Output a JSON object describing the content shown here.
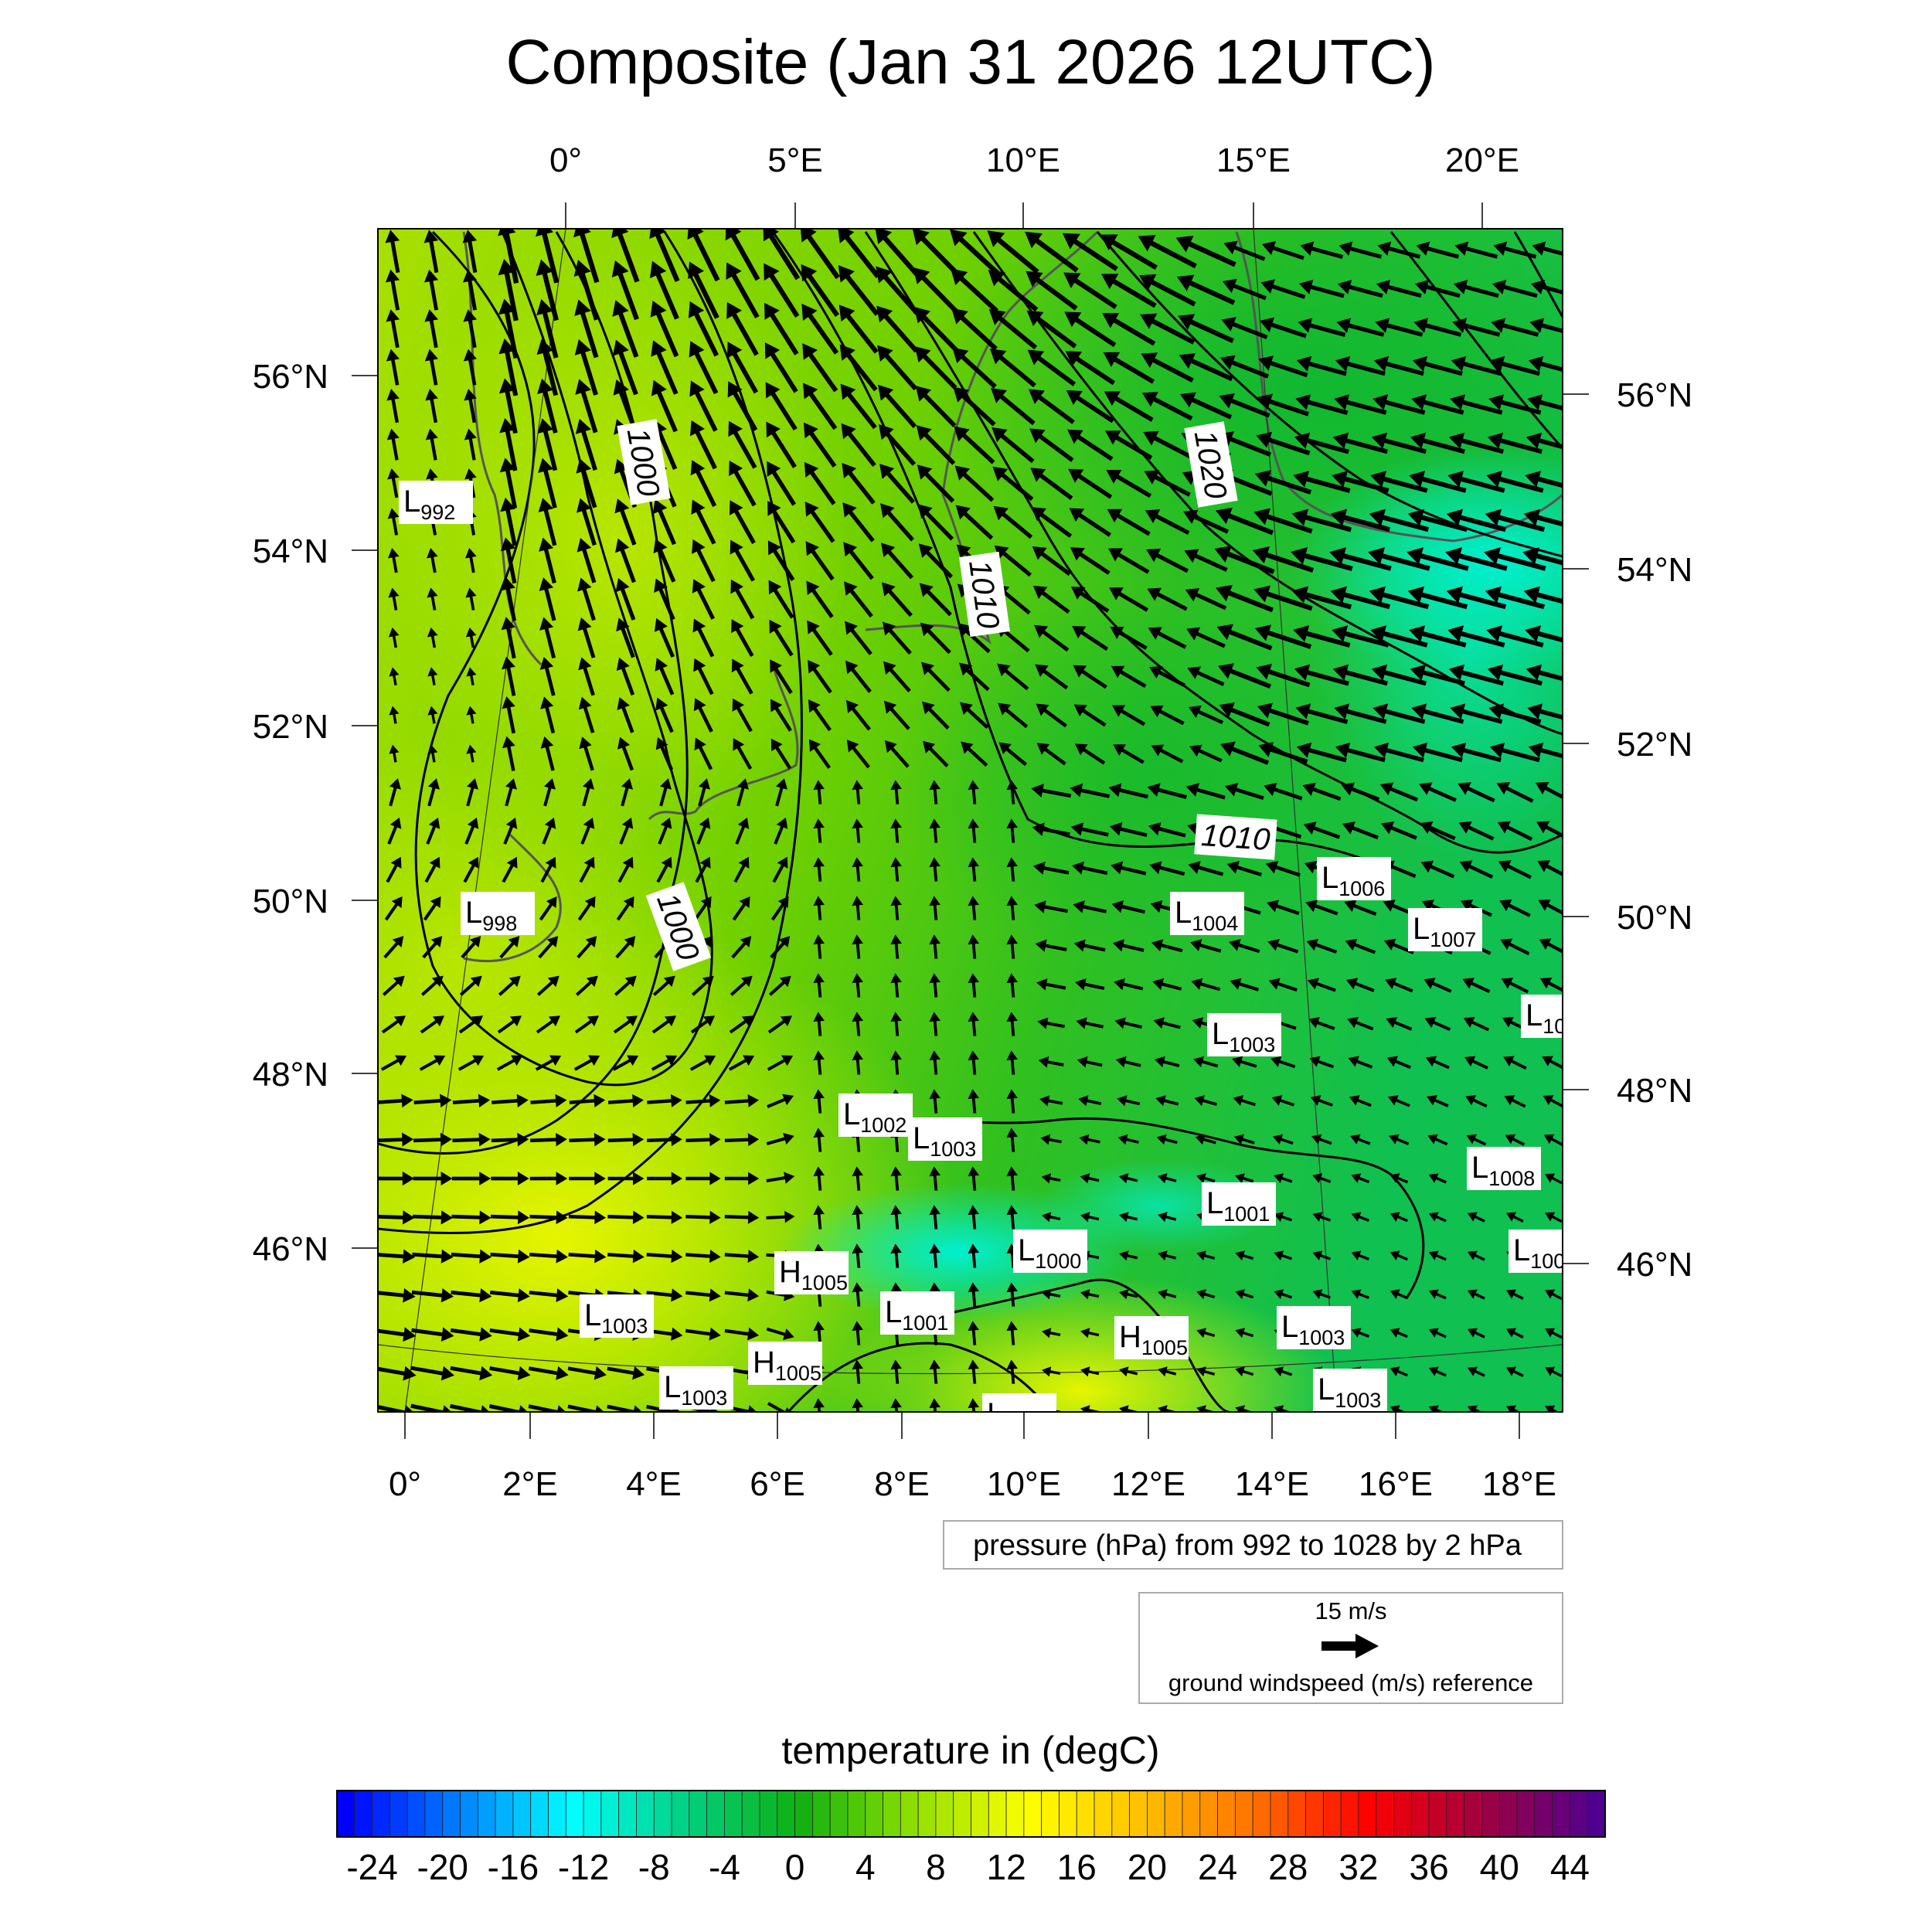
{
  "title": "Composite (Jan 31 2026 12UTC)",
  "chart_data": {
    "type": "heatmap",
    "title": "Composite (Jan 31 2026 12UTC)",
    "top_lon_ticks": [
      "0°",
      "5°E",
      "10°E",
      "15°E",
      "20°E"
    ],
    "bottom_lon_ticks": [
      "0°",
      "2°E",
      "4°E",
      "6°E",
      "8°E",
      "10°E",
      "12°E",
      "14°E",
      "16°E",
      "18°E"
    ],
    "left_lat_ticks": [
      "56°N",
      "54°N",
      "52°N",
      "50°N",
      "48°N",
      "46°N"
    ],
    "right_lat_ticks": [
      "56°N",
      "54°N",
      "52°N",
      "50°N",
      "48°N",
      "46°N"
    ],
    "contour_labels": [
      "1000",
      "1000",
      "1020",
      "1010",
      "1010"
    ],
    "pressure_centers": [
      {
        "type": "L",
        "value": "992"
      },
      {
        "type": "L",
        "value": "998"
      },
      {
        "type": "L",
        "value": "1004"
      },
      {
        "type": "L",
        "value": "1006"
      },
      {
        "type": "L",
        "value": "1007"
      },
      {
        "type": "L",
        "value": "10"
      },
      {
        "type": "L",
        "value": "1003"
      },
      {
        "type": "L",
        "value": "1002"
      },
      {
        "type": "L",
        "value": "1003"
      },
      {
        "type": "L",
        "value": "1008"
      },
      {
        "type": "L",
        "value": "1001"
      },
      {
        "type": "L",
        "value": "100"
      },
      {
        "type": "L",
        "value": "1000"
      },
      {
        "type": "H",
        "value": "1005"
      },
      {
        "type": "L",
        "value": "1003"
      },
      {
        "type": "L",
        "value": "1001"
      },
      {
        "type": "H",
        "value": "1005"
      },
      {
        "type": "L",
        "value": "1003"
      },
      {
        "type": "H",
        "value": "1005"
      },
      {
        "type": "L",
        "value": "1003"
      },
      {
        "type": "L",
        "value": "1003"
      },
      {
        "type": "L",
        "value": ""
      }
    ],
    "pressure_legend": "pressure (hPa) from 992 to 1028 by 2 hPa",
    "wind_reference": {
      "speed_label": "15 m/s",
      "caption": "ground windspeed (m/s) reference",
      "speed": 15
    },
    "colorbar": {
      "title": "temperature in (degC)",
      "min": -26,
      "max": 46,
      "step": 1,
      "tick_labels": [
        "-24",
        "-20",
        "-16",
        "-12",
        "-8",
        "-4",
        "0",
        "4",
        "8",
        "12",
        "16",
        "20",
        "24",
        "28",
        "32",
        "36",
        "40",
        "44"
      ],
      "color_stops": [
        "#0000ff",
        "#0080ff",
        "#00ffff",
        "#00d080",
        "#10b010",
        "#90e000",
        "#ffff00",
        "#ffc000",
        "#ff7000",
        "#ff0000",
        "#a00040",
        "#500090"
      ]
    }
  }
}
